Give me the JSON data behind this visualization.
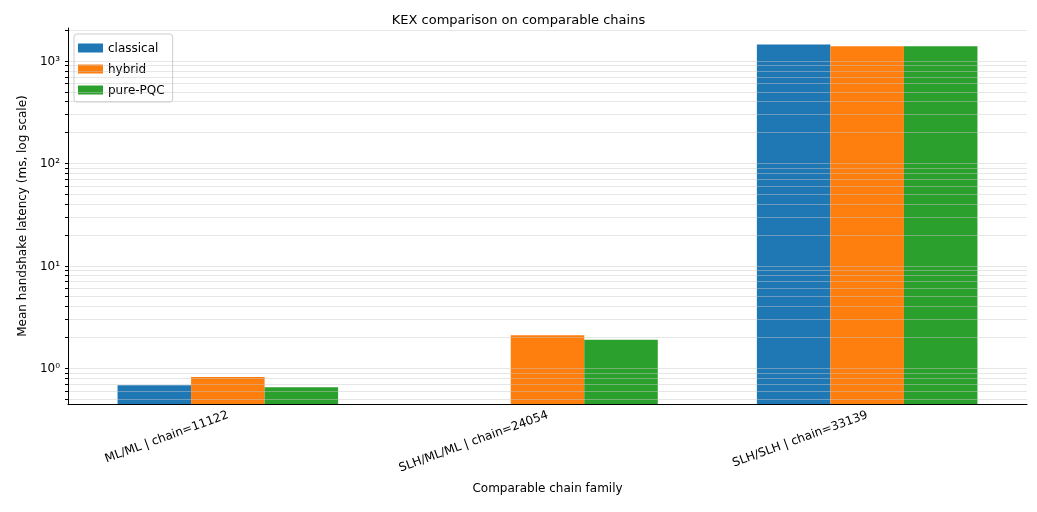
{
  "chart_data": {
    "type": "bar",
    "title": "KEX comparison on comparable chains",
    "xlabel": "Comparable chain family",
    "ylabel": "Mean handshake latency (ms, log scale)",
    "categories": [
      "ML/ML | chain=11122",
      "SLH/ML/ML | chain=24054",
      "SLH/SLH | chain=33139"
    ],
    "series": [
      {
        "name": "classical",
        "color": "#1f77b4",
        "values": [
          0.68,
          null,
          1450
        ]
      },
      {
        "name": "hybrid",
        "color": "#ff7f0e",
        "values": [
          0.82,
          2.1,
          1390
        ]
      },
      {
        "name": "pure-PQC",
        "color": "#2ca02c",
        "values": [
          0.65,
          1.9,
          1390
        ]
      }
    ],
    "log": "y",
    "ylim": [
      0.447,
      2100
    ],
    "yticks": [
      {
        "value": 0.5,
        "label": null
      },
      {
        "value": 0.6,
        "label": null
      },
      {
        "value": 0.7,
        "label": null
      },
      {
        "value": 0.8,
        "label": null
      },
      {
        "value": 0.9,
        "label": null
      },
      {
        "value": 1,
        "label": "10⁰"
      },
      {
        "value": 2,
        "label": null
      },
      {
        "value": 3,
        "label": null
      },
      {
        "value": 4,
        "label": null
      },
      {
        "value": 5,
        "label": null
      },
      {
        "value": 6,
        "label": null
      },
      {
        "value": 7,
        "label": null
      },
      {
        "value": 8,
        "label": null
      },
      {
        "value": 9,
        "label": null
      },
      {
        "value": 10,
        "label": "10¹"
      },
      {
        "value": 20,
        "label": null
      },
      {
        "value": 30,
        "label": null
      },
      {
        "value": 40,
        "label": null
      },
      {
        "value": 50,
        "label": null
      },
      {
        "value": 60,
        "label": null
      },
      {
        "value": 70,
        "label": null
      },
      {
        "value": 80,
        "label": null
      },
      {
        "value": 90,
        "label": null
      },
      {
        "value": 100,
        "label": "10²"
      },
      {
        "value": 200,
        "label": null
      },
      {
        "value": 300,
        "label": null
      },
      {
        "value": 400,
        "label": null
      },
      {
        "value": 500,
        "label": null
      },
      {
        "value": 600,
        "label": null
      },
      {
        "value": 700,
        "label": null
      },
      {
        "value": 800,
        "label": null
      },
      {
        "value": 900,
        "label": null
      },
      {
        "value": 1000,
        "label": "10³"
      },
      {
        "value": 2000,
        "label": null
      }
    ],
    "grid": "y",
    "legend": "top left"
  }
}
